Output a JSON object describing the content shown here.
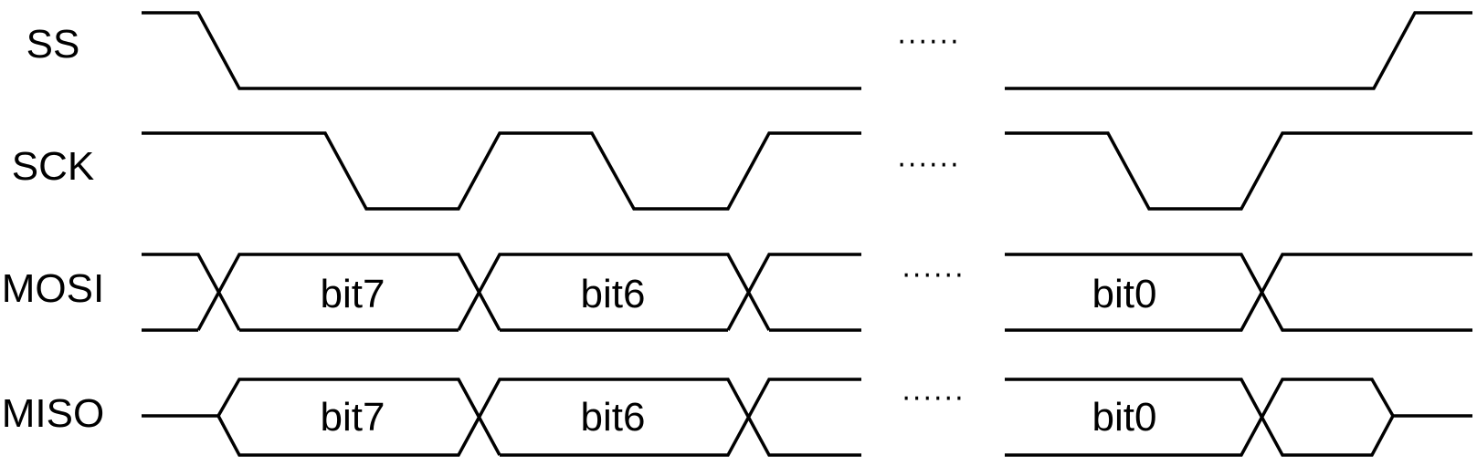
{
  "colors": {
    "line": "#000000",
    "background": "#ffffff"
  },
  "signals": [
    {
      "name": "SS",
      "ellipsis": "······"
    },
    {
      "name": "SCK",
      "ellipsis": "······"
    },
    {
      "name": "MOSI",
      "ellipsis": "······",
      "bits": [
        "bit7",
        "bit6",
        "bit0"
      ]
    },
    {
      "name": "MISO",
      "ellipsis": "······",
      "bits": [
        "bit7",
        "bit6",
        "bit0"
      ]
    }
  ]
}
